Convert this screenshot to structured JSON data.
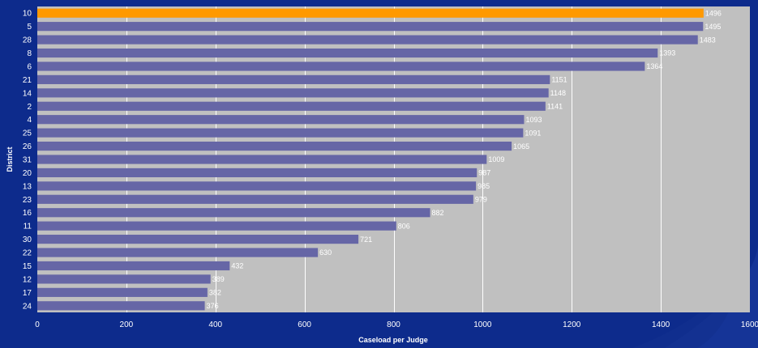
{
  "chart_data": {
    "type": "bar",
    "orientation": "horizontal",
    "categories": [
      "10",
      "5",
      "28",
      "8",
      "6",
      "21",
      "14",
      "2",
      "4",
      "25",
      "26",
      "31",
      "20",
      "13",
      "23",
      "16",
      "11",
      "30",
      "22",
      "15",
      "12",
      "17",
      "24"
    ],
    "values": [
      1496,
      1495,
      1483,
      1393,
      1364,
      1151,
      1148,
      1141,
      1093,
      1091,
      1065,
      1009,
      987,
      985,
      979,
      882,
      806,
      721,
      630,
      432,
      389,
      382,
      376
    ],
    "highlight_category": "10",
    "xlabel": "Caseload per Judge",
    "ylabel": "District",
    "xlim": [
      0,
      1600
    ],
    "xticks": [
      0,
      200,
      400,
      600,
      800,
      1000,
      1200,
      1400,
      1600
    ],
    "grid": "vertical",
    "colors": {
      "background": "#0d2b8c",
      "plot_area": "#c0c0c0",
      "bar": "#6666a6",
      "highlight_bar": "#ff9900",
      "gridline": "#ffffff",
      "text": "#ffffff"
    }
  }
}
